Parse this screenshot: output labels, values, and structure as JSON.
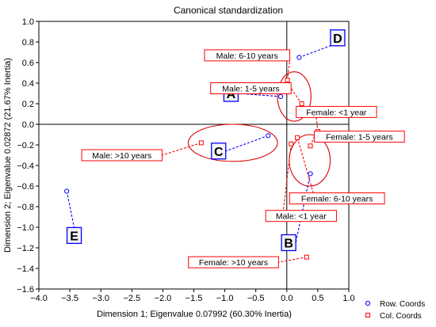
{
  "chart_data": {
    "type": "scatter",
    "title": "Canonical standardization",
    "xlabel": "Dimension 1; Eigenvalue 0.07992 (60.30% Inertia)",
    "ylabel": "Dimension 2; Eigenvalue 0.02872 (21.67% Inertia)",
    "xlim": [
      -4.0,
      1.0
    ],
    "ylim": [
      -1.6,
      1.0
    ],
    "xticks": [
      "-4.0",
      "-3.5",
      "-3.0",
      "-2.5",
      "-2.0",
      "-1.5",
      "-1.0",
      "-0.5",
      "0.0",
      "0.5",
      "1.0"
    ],
    "yticks": [
      "1.0",
      "0.8",
      "0.6",
      "0.4",
      "0.2",
      "0.0",
      "-0.2",
      "-0.4",
      "-0.6",
      "-0.8",
      "-1.0",
      "-1.2",
      "-1.4",
      "-1.6"
    ],
    "grid": false,
    "legend_position": "bottom-right",
    "colors": {
      "row": "#0000ff",
      "col": "#ff0000",
      "ellipse": "#dd0000"
    },
    "series": [
      {
        "name": "Row. Coords",
        "marker": "circle",
        "points": [
          {
            "label": "A",
            "x": -0.1,
            "y": 0.27
          },
          {
            "label": "B",
            "x": 0.38,
            "y": -0.48
          },
          {
            "label": "C",
            "x": -0.3,
            "y": -0.11
          },
          {
            "label": "D",
            "x": 0.2,
            "y": 0.65
          },
          {
            "label": "E",
            "x": -3.55,
            "y": -0.65
          }
        ]
      },
      {
        "name": "Col. Coords",
        "marker": "square",
        "points": [
          {
            "label": "Male: 6-10 years",
            "x": 0.01,
            "y": 0.43
          },
          {
            "label": "Male: 1-5 years",
            "x": 0.24,
            "y": 0.2
          },
          {
            "label": "Male: >10 years",
            "x": -1.38,
            "y": -0.18
          },
          {
            "label": "Male: <1 year",
            "x": 0.07,
            "y": -0.19
          },
          {
            "label": "Female: <1 year",
            "x": 0.5,
            "y": -0.07
          },
          {
            "label": "Female: 1-5 years",
            "x": 0.38,
            "y": -0.21
          },
          {
            "label": "Female: 6-10 years",
            "x": 0.17,
            "y": -0.13
          },
          {
            "label": "Female: >10 years",
            "x": 0.32,
            "y": -1.29
          }
        ]
      }
    ]
  }
}
